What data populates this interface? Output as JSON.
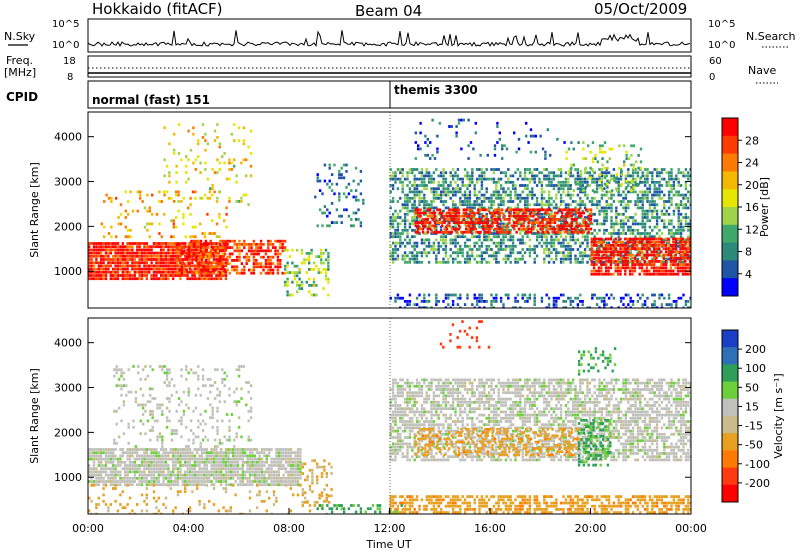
{
  "header": {
    "station": "Hokkaido (fitACF)",
    "beam": "Beam 04",
    "date": "05/Oct/2009"
  },
  "panels": {
    "nsky": {
      "left_label": "N.Sky",
      "right_label": "N.Search",
      "y_ticks": [
        "10^5",
        "10^0"
      ]
    },
    "freq": {
      "label_line1": "Freq.",
      "label_line2": "[MHz]",
      "left_ticks": [
        "18",
        "8"
      ],
      "right_ticks": [
        "60",
        "0"
      ],
      "right_label": "Nave"
    },
    "cpid": {
      "label": "CPID",
      "segments": [
        {
          "label": "normal (fast) 151",
          "start_hour": 0,
          "end_hour": 12
        },
        {
          "label": "themis 3300",
          "start_hour": 12,
          "end_hour": 24
        }
      ]
    }
  },
  "colorbars": {
    "power": {
      "title": "Power [dB]",
      "ticks": [
        "28",
        "24",
        "20",
        "16",
        "12",
        "8",
        "4"
      ],
      "colors": [
        "#ff0000",
        "#ff3c00",
        "#ff7a00",
        "#f5b800",
        "#e6e600",
        "#9fd44a",
        "#3fa86b",
        "#2d8a7a",
        "#1f55a6",
        "#0000ff"
      ]
    },
    "velocity": {
      "title": "Velocity [m s⁻¹]",
      "ticks": [
        "200",
        "100",
        "50",
        "15",
        "-15",
        "-50",
        "-100",
        "-200"
      ],
      "colors": [
        "#1a3fc4",
        "#2e6fb6",
        "#2f9e58",
        "#6ecf3d",
        "#c0c0bc",
        "#c8bc8a",
        "#e8a020",
        "#ff7a00",
        "#ff3a10",
        "#ff0000"
      ]
    }
  },
  "chart_data": [
    {
      "type": "heatmap",
      "name": "power",
      "ylabel": "Slant Range [km]",
      "x_range_hours": [
        0,
        24
      ],
      "ylim": [
        180,
        4550
      ],
      "yticks": [
        1000,
        2000,
        3000,
        4000
      ],
      "scatter_blobs": [
        {
          "t0": 0.0,
          "t1": 5.5,
          "r0": 850,
          "r1": 1650,
          "dens": 0.9,
          "val": 28
        },
        {
          "t0": 3.5,
          "t1": 7.8,
          "r0": 950,
          "r1": 1700,
          "dens": 0.6,
          "val": 26
        },
        {
          "t0": 7.8,
          "t1": 9.6,
          "r0": 500,
          "r1": 1500,
          "dens": 0.35,
          "val": 14
        },
        {
          "t0": 0.5,
          "t1": 5.5,
          "r0": 1800,
          "r1": 2800,
          "dens": 0.15,
          "val": 20
        },
        {
          "t0": 3.0,
          "t1": 6.5,
          "r0": 2500,
          "r1": 4300,
          "dens": 0.1,
          "val": 18
        },
        {
          "t0": 9.0,
          "t1": 11.0,
          "r0": 2000,
          "r1": 3400,
          "dens": 0.2,
          "val": 8
        },
        {
          "t0": 12.0,
          "t1": 24.0,
          "r0": 1200,
          "r1": 3300,
          "dens": 0.55,
          "val": 10
        },
        {
          "t0": 13.0,
          "t1": 20.0,
          "r0": 1900,
          "r1": 2400,
          "dens": 0.7,
          "val": 28
        },
        {
          "t0": 20.0,
          "t1": 24.0,
          "r0": 950,
          "r1": 1750,
          "dens": 0.8,
          "val": 28
        },
        {
          "t0": 12.0,
          "t1": 24.0,
          "r0": 200,
          "r1": 500,
          "dens": 0.35,
          "val": 6
        },
        {
          "t0": 13.0,
          "t1": 19.0,
          "r0": 3500,
          "r1": 4400,
          "dens": 0.08,
          "val": 6
        },
        {
          "t0": 19.0,
          "t1": 22.0,
          "r0": 2800,
          "r1": 3900,
          "dens": 0.2,
          "val": 14
        }
      ]
    },
    {
      "type": "heatmap",
      "name": "velocity",
      "xlabel": "Time UT",
      "ylabel": "Slant Range [km]",
      "x_range_hours": [
        0,
        24
      ],
      "ylim": [
        180,
        4550
      ],
      "yticks": [
        1000,
        2000,
        3000,
        4000
      ],
      "xticks": [
        "00:00",
        "04:00",
        "08:00",
        "12:00",
        "16:00",
        "20:00",
        "00:00"
      ],
      "scatter_blobs": [
        {
          "t0": 0.0,
          "t1": 8.5,
          "r0": 850,
          "r1": 1650,
          "dens": 0.85,
          "val": 0
        },
        {
          "t0": 0.0,
          "t1": 9.5,
          "r0": 200,
          "r1": 850,
          "dens": 0.15,
          "val": -40
        },
        {
          "t0": 1.0,
          "t1": 6.5,
          "r0": 1700,
          "r1": 3500,
          "dens": 0.18,
          "val": 0
        },
        {
          "t0": 8.5,
          "t1": 9.7,
          "r0": 400,
          "r1": 1400,
          "dens": 0.3,
          "val": -40
        },
        {
          "t0": 12.0,
          "t1": 24.0,
          "r0": 1400,
          "r1": 3200,
          "dens": 0.65,
          "val": 0
        },
        {
          "t0": 13.0,
          "t1": 19.5,
          "r0": 1500,
          "r1": 2100,
          "dens": 0.4,
          "val": -60
        },
        {
          "t0": 19.5,
          "t1": 20.8,
          "r0": 1300,
          "r1": 2300,
          "dens": 0.5,
          "val": 40
        },
        {
          "t0": 12.0,
          "t1": 24.0,
          "r0": 200,
          "r1": 600,
          "dens": 0.6,
          "val": -60
        },
        {
          "t0": 9.0,
          "t1": 12.5,
          "r0": 200,
          "r1": 400,
          "dens": 0.4,
          "val": 40
        },
        {
          "t0": 14.0,
          "t1": 16.0,
          "r0": 3900,
          "r1": 4500,
          "dens": 0.15,
          "val": -200
        },
        {
          "t0": 19.5,
          "t1": 21.0,
          "r0": 3300,
          "r1": 3900,
          "dens": 0.3,
          "val": 40
        }
      ]
    }
  ]
}
